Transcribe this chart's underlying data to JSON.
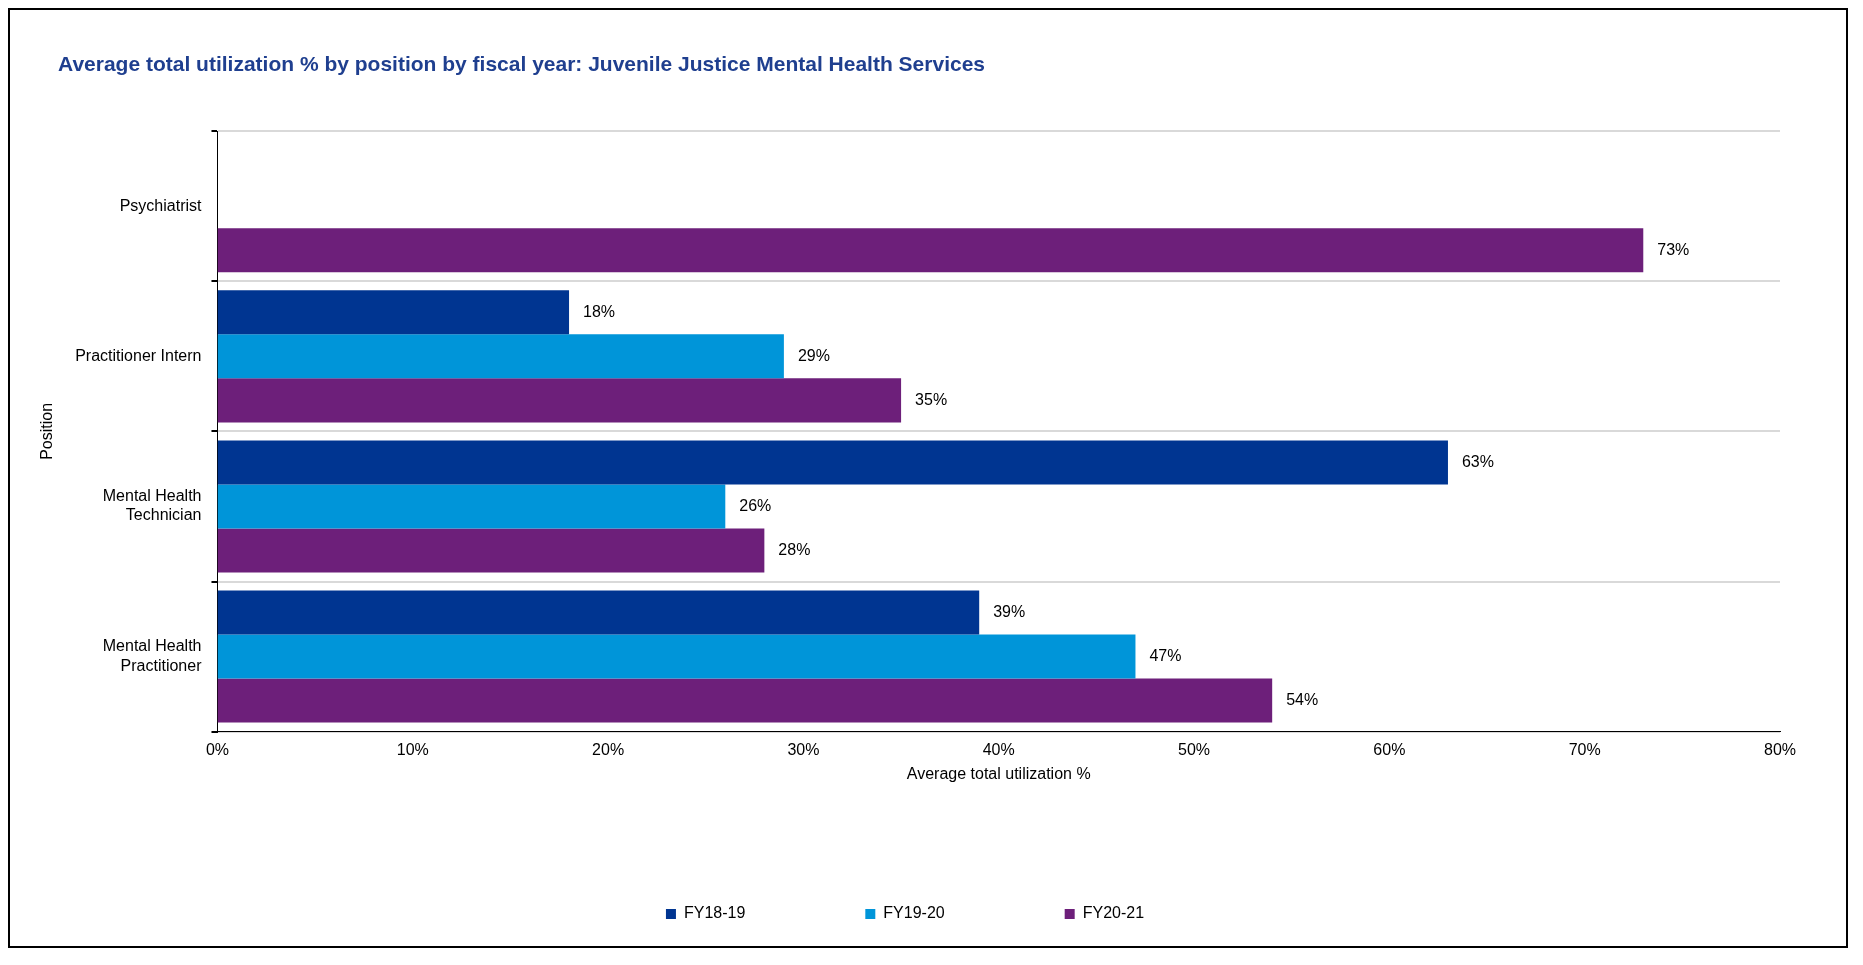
{
  "chart_data": {
    "type": "bar",
    "orientation": "horizontal",
    "title": "Average total utilization % by position by fiscal year: Juvenile Justice Mental Health Services",
    "xlabel": "Average total utilization %",
    "ylabel": "Position",
    "categories": [
      "Psychiatrist",
      "Practitioner Intern",
      "Mental Health Technician",
      "Mental Health Practitioner"
    ],
    "series": [
      {
        "name": "FY18-19",
        "color": "#003591",
        "values": [
          null,
          18,
          63,
          39
        ],
        "value_labels": [
          null,
          "18%",
          "63%",
          "39%"
        ]
      },
      {
        "name": "FY19-20",
        "color": "#0095d9",
        "values": [
          null,
          29,
          26,
          47
        ],
        "value_labels": [
          null,
          "29%",
          "26%",
          "47%"
        ]
      },
      {
        "name": "FY20-21",
        "color": "#6d1f7a",
        "values": [
          73,
          35,
          28,
          54
        ],
        "value_labels": [
          "73%",
          "35%",
          "28%",
          "54%"
        ]
      }
    ],
    "xlim": [
      0,
      80
    ],
    "xticks": [
      {
        "value": 0,
        "label": "0%"
      },
      {
        "value": 10,
        "label": "10%"
      },
      {
        "value": 20,
        "label": "20%"
      },
      {
        "value": 30,
        "label": "30%"
      },
      {
        "value": 40,
        "label": "40%"
      },
      {
        "value": 50,
        "label": "50%"
      },
      {
        "value": 60,
        "label": "60%"
      },
      {
        "value": 70,
        "label": "70%"
      },
      {
        "value": 80,
        "label": "80%"
      }
    ],
    "grid": "y",
    "legend": "bottom"
  }
}
